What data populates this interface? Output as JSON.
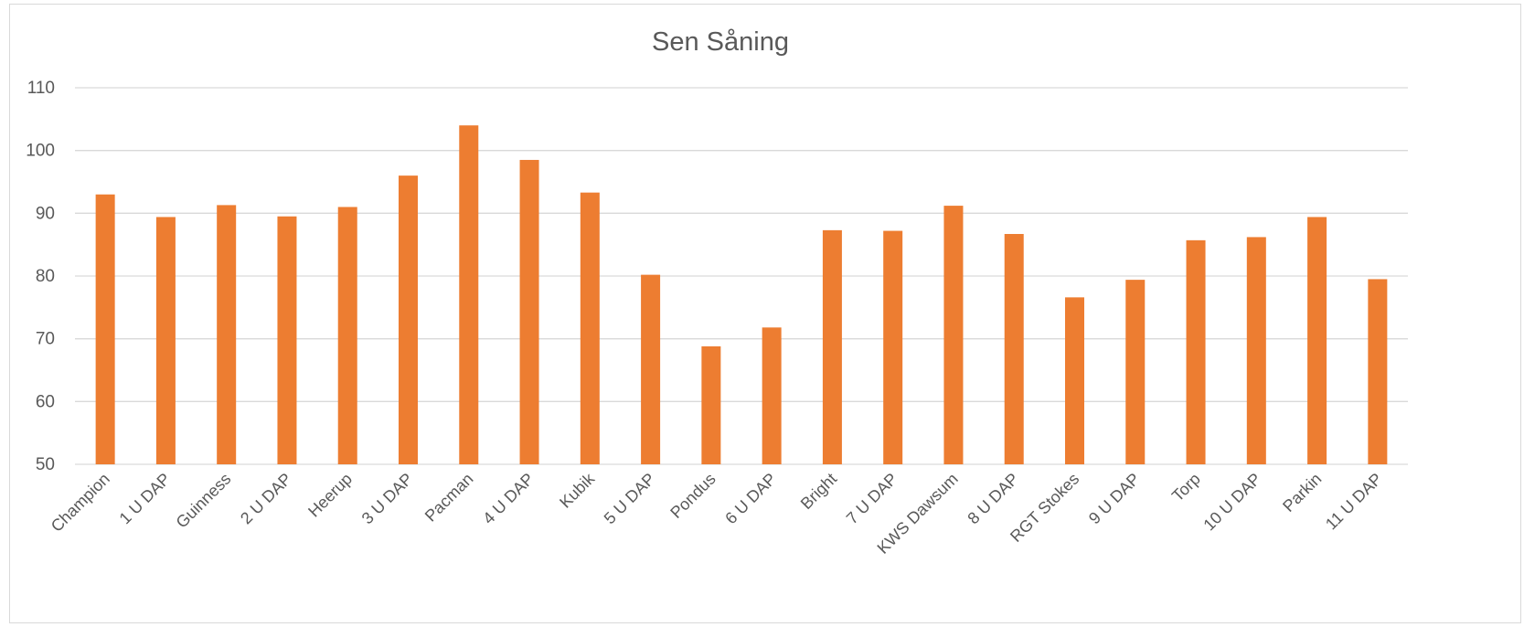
{
  "chart_data": {
    "type": "bar",
    "title": "Sen Såning",
    "xlabel": "",
    "ylabel": "",
    "ylim": [
      50,
      110
    ],
    "yticks": [
      50,
      60,
      70,
      80,
      90,
      100,
      110
    ],
    "grid": true,
    "legend": "none",
    "bar_color": "#ED7D31",
    "categories": [
      "Champion",
      "1 U DAP",
      "Guinness",
      "2 U DAP",
      "Heerup",
      "3 U DAP",
      "Pacman",
      "4 U DAP",
      "Kubik",
      "5 U DAP",
      "Pondus",
      "6 U DAP",
      "Bright",
      "7 U DAP",
      "KWS Dawsum",
      "8 U DAP",
      "RGT Stokes",
      "9 U DAP",
      "Torp",
      "10 U DAP",
      "Parkin",
      "11 U DAP"
    ],
    "values": [
      93.0,
      89.4,
      91.3,
      89.5,
      91.0,
      96.0,
      104.0,
      98.5,
      93.3,
      80.2,
      68.8,
      71.8,
      87.3,
      87.2,
      91.2,
      86.7,
      76.6,
      79.4,
      85.7,
      86.2,
      89.4,
      79.5
    ]
  }
}
